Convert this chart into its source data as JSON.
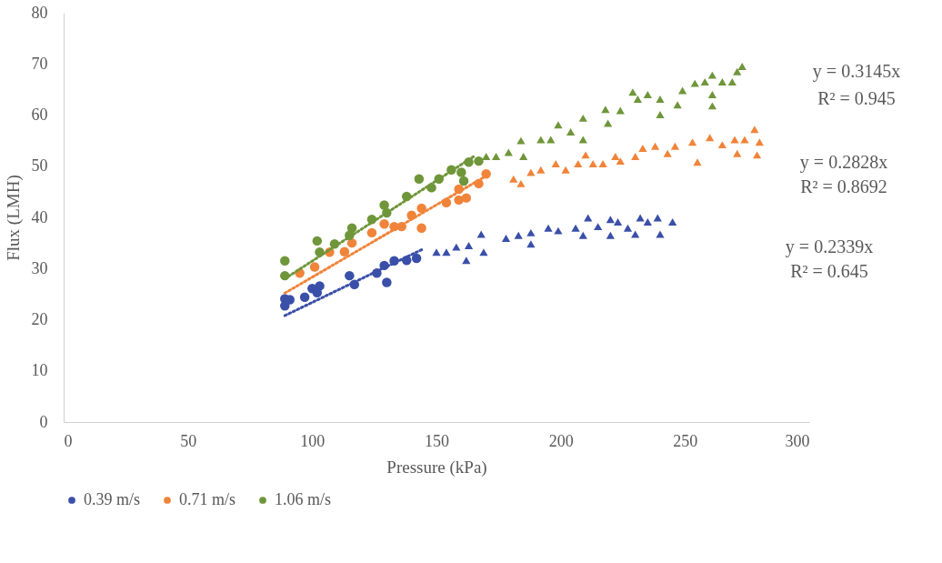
{
  "chart_data": {
    "type": "scatter",
    "xlabel": "Pressure (kPa)",
    "ylabel": "Flux (LMH)",
    "xlim": [
      0,
      300
    ],
    "xticks": [
      0,
      50,
      100,
      150,
      200,
      250,
      300
    ],
    "ylim": [
      0,
      80
    ],
    "yticks": [
      0,
      10,
      20,
      30,
      40,
      50,
      60,
      70,
      80
    ],
    "legend": "bottom",
    "annotations": [
      "y = 0.3145x",
      "R² = 0.945",
      "y = 0.2828x",
      "R² = 0.8692",
      "y = 0.2339x",
      "R² = 0.645"
    ],
    "series": [
      {
        "name": "0.39 m/s",
        "color": "#3a4fa8",
        "marker": "circle",
        "x": [
          89,
          89,
          91,
          97,
          100,
          103,
          102,
          115,
          117,
          126,
          129,
          130,
          133,
          138,
          142
        ],
        "values": [
          24.1,
          22.7,
          23.9,
          24.4,
          26.1,
          26.6,
          25.3,
          28.6,
          26.9,
          29.1,
          30.6,
          27.3,
          31.5,
          31.6,
          32.0
        ]
      },
      {
        "type": "scatter",
        "color": "#3a4fa8",
        "marker": "triangle",
        "x": [
          150,
          154,
          158,
          162,
          163,
          168,
          169,
          178,
          183,
          188,
          188,
          195,
          199,
          206,
          211,
          209,
          215,
          220,
          220,
          223,
          227,
          230,
          232,
          235,
          239,
          240,
          245
        ],
        "values": [
          33.2,
          33.2,
          34.2,
          31.6,
          34.5,
          36.7,
          33.2,
          35.9,
          36.5,
          37.0,
          34.8,
          37.9,
          37.4,
          37.9,
          39.9,
          36.5,
          38.2,
          39.6,
          36.5,
          39.1,
          37.9,
          36.7,
          39.9,
          39.1,
          39.9,
          36.7,
          39.1
        ]
      },
      {
        "name": "0.71 m/s",
        "color": "#f0843a",
        "marker": "circle",
        "x": [
          95,
          101,
          107,
          113,
          116,
          124,
          129,
          133,
          136,
          144,
          140,
          144,
          154,
          159,
          162,
          159,
          167,
          170
        ],
        "values": [
          29.1,
          30.3,
          33.2,
          33.3,
          35.0,
          37.0,
          38.7,
          38.2,
          38.2,
          37.9,
          40.4,
          41.8,
          42.9,
          43.4,
          43.8,
          45.5,
          46.6,
          48.5
        ]
      },
      {
        "type": "scatter",
        "color": "#f0843a",
        "marker": "triangle",
        "x": [
          181,
          184,
          188,
          192,
          198,
          202,
          207,
          210,
          213,
          217,
          222,
          224,
          230,
          233,
          238,
          243,
          246,
          253,
          255,
          260,
          265,
          270,
          271,
          274,
          278,
          279,
          280
        ],
        "values": [
          47.5,
          46.6,
          48.8,
          49.3,
          50.5,
          49.3,
          50.5,
          52.2,
          50.5,
          50.5,
          51.9,
          51.0,
          51.9,
          53.5,
          53.9,
          52.5,
          53.9,
          54.7,
          50.8,
          55.6,
          54.2,
          55.2,
          52.5,
          55.2,
          57.2,
          52.2,
          54.7
        ]
      },
      {
        "name": "1.06 m/s",
        "color": "#6f963a",
        "marker": "circle",
        "x": [
          89,
          89,
          102,
          103,
          109,
          116,
          115,
          124,
          129,
          130,
          138,
          143,
          148,
          151,
          156,
          160,
          161,
          163,
          167
        ],
        "values": [
          31.5,
          28.6,
          35.4,
          33.2,
          34.8,
          37.9,
          36.5,
          39.6,
          42.4,
          40.9,
          44.1,
          47.5,
          45.8,
          47.5,
          49.3,
          48.8,
          47.1,
          50.8,
          51.0
        ]
      },
      {
        "type": "scatter",
        "color": "#6f963a",
        "marker": "triangle",
        "x": [
          170,
          174,
          179,
          184,
          185,
          192,
          196,
          199,
          204,
          209,
          209,
          218,
          219,
          224,
          229,
          231,
          235,
          240,
          240,
          247,
          249,
          254,
          258,
          261,
          261,
          261,
          265,
          269,
          271,
          273
        ],
        "values": [
          51.9,
          51.9,
          52.7,
          55.0,
          51.9,
          55.2,
          55.2,
          58.1,
          56.7,
          59.4,
          55.2,
          61.1,
          58.4,
          60.9,
          64.5,
          63.1,
          64.0,
          63.1,
          60.1,
          62.0,
          64.8,
          66.2,
          66.5,
          67.8,
          64.0,
          61.8,
          66.5,
          66.5,
          68.5,
          69.5
        ]
      },
      {
        "type": "line",
        "color": "#3a4fa8",
        "line_style": "dotted",
        "x": [
          89,
          145
        ],
        "values": [
          20.8,
          33.9
        ]
      },
      {
        "type": "line",
        "color": "#f0843a",
        "line_style": "dotted",
        "x": [
          89,
          170
        ],
        "values": [
          25.2,
          48.1
        ]
      },
      {
        "type": "line",
        "color": "#6f963a",
        "line_style": "dotted",
        "x": [
          89,
          165
        ],
        "values": [
          28.0,
          51.9
        ]
      }
    ]
  }
}
